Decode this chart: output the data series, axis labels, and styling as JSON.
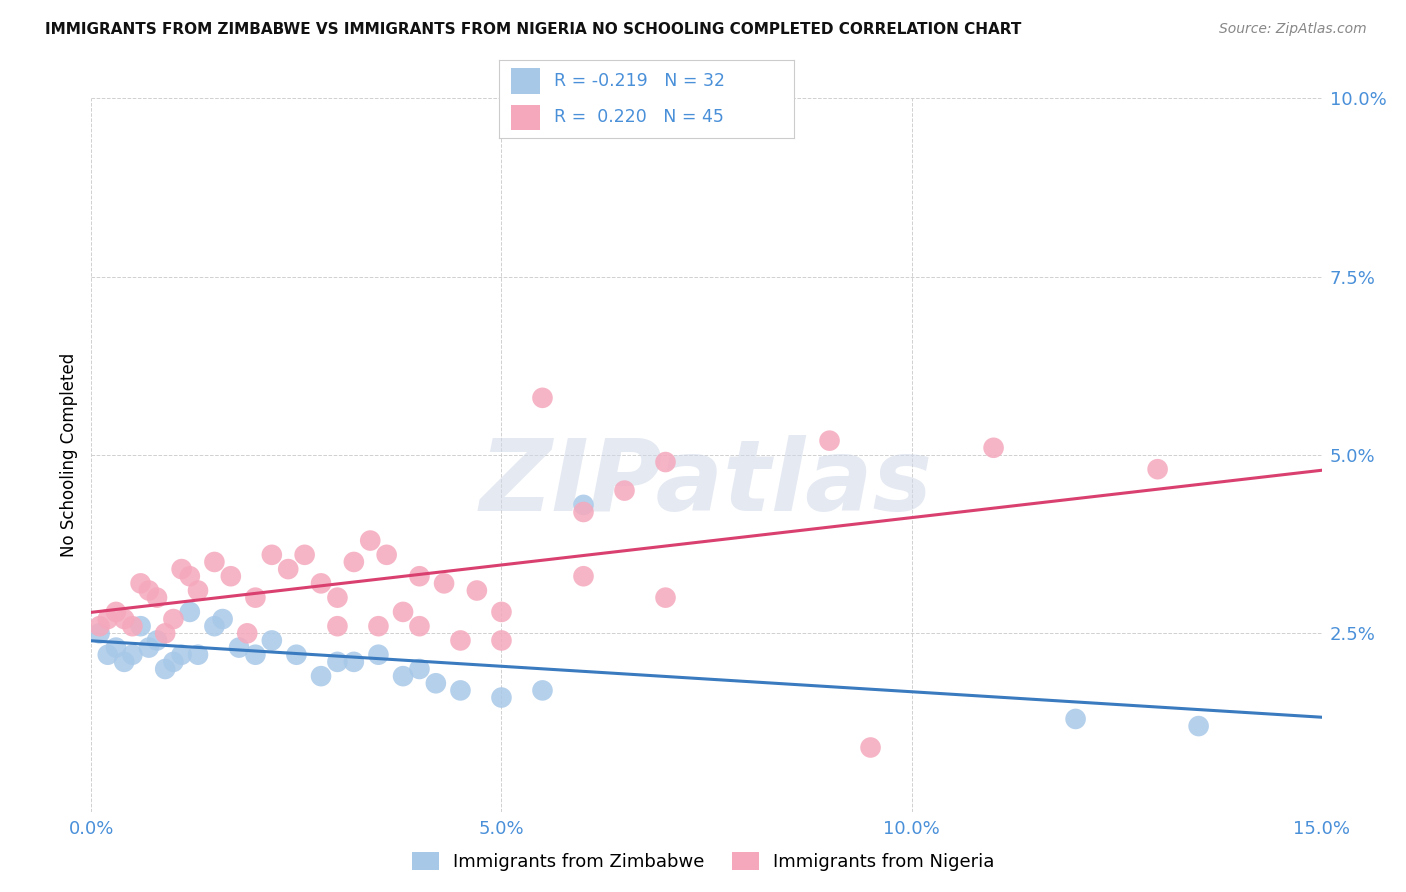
{
  "title": "IMMIGRANTS FROM ZIMBABWE VS IMMIGRANTS FROM NIGERIA NO SCHOOLING COMPLETED CORRELATION CHART",
  "source": "Source: ZipAtlas.com",
  "ylabel": "No Schooling Completed",
  "xlim": [
    0.0,
    0.15
  ],
  "ylim": [
    0.0,
    0.1
  ],
  "xticks": [
    0.0,
    0.05,
    0.1,
    0.15
  ],
  "yticks": [
    0.0,
    0.025,
    0.05,
    0.075,
    0.1
  ],
  "xtick_labels": [
    "0.0%",
    "5.0%",
    "10.0%",
    "15.0%"
  ],
  "ytick_labels": [
    "",
    "2.5%",
    "5.0%",
    "7.5%",
    "10.0%"
  ],
  "zimbabwe_color": "#a8c8e8",
  "nigeria_color": "#f5a8bc",
  "zimbabwe_line_color": "#3a7abf",
  "nigeria_line_color": "#d94070",
  "tick_color": "#4a90d9",
  "zimbabwe_R": -0.219,
  "zimbabwe_N": 32,
  "nigeria_R": 0.22,
  "nigeria_N": 45,
  "zimbabwe_x": [
    0.001,
    0.002,
    0.003,
    0.004,
    0.005,
    0.006,
    0.007,
    0.008,
    0.009,
    0.01,
    0.011,
    0.012,
    0.013,
    0.015,
    0.016,
    0.018,
    0.02,
    0.022,
    0.025,
    0.028,
    0.03,
    0.032,
    0.035,
    0.038,
    0.04,
    0.042,
    0.045,
    0.05,
    0.055,
    0.06,
    0.12,
    0.135
  ],
  "zimbabwe_y": [
    0.025,
    0.022,
    0.023,
    0.021,
    0.022,
    0.026,
    0.023,
    0.024,
    0.02,
    0.021,
    0.022,
    0.028,
    0.022,
    0.026,
    0.027,
    0.023,
    0.022,
    0.024,
    0.022,
    0.019,
    0.021,
    0.021,
    0.022,
    0.019,
    0.02,
    0.018,
    0.017,
    0.016,
    0.017,
    0.043,
    0.013,
    0.012
  ],
  "nigeria_x": [
    0.001,
    0.002,
    0.003,
    0.004,
    0.005,
    0.006,
    0.007,
    0.008,
    0.009,
    0.01,
    0.011,
    0.012,
    0.013,
    0.015,
    0.017,
    0.019,
    0.02,
    0.022,
    0.024,
    0.026,
    0.028,
    0.03,
    0.032,
    0.034,
    0.036,
    0.038,
    0.04,
    0.043,
    0.047,
    0.05,
    0.055,
    0.06,
    0.065,
    0.07,
    0.03,
    0.035,
    0.04,
    0.045,
    0.05,
    0.06,
    0.07,
    0.09,
    0.095,
    0.11,
    0.13
  ],
  "nigeria_y": [
    0.026,
    0.027,
    0.028,
    0.027,
    0.026,
    0.032,
    0.031,
    0.03,
    0.025,
    0.027,
    0.034,
    0.033,
    0.031,
    0.035,
    0.033,
    0.025,
    0.03,
    0.036,
    0.034,
    0.036,
    0.032,
    0.03,
    0.035,
    0.038,
    0.036,
    0.028,
    0.033,
    0.032,
    0.031,
    0.028,
    0.058,
    0.042,
    0.045,
    0.03,
    0.026,
    0.026,
    0.026,
    0.024,
    0.024,
    0.033,
    0.049,
    0.052,
    0.009,
    0.051,
    0.048
  ],
  "watermark_text": "ZIPatlas",
  "background_color": "#ffffff",
  "grid_color": "#d0d0d0",
  "legend_label_zim": "Immigrants from Zimbabwe",
  "legend_label_nig": "Immigrants from Nigeria",
  "legend_zim_text": "R = -0.219   N = 32",
  "legend_nig_text": "R =  0.220   N = 45"
}
